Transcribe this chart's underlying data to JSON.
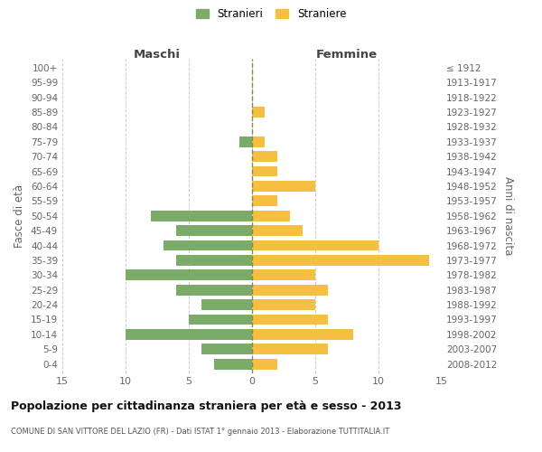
{
  "age_groups": [
    "0-4",
    "5-9",
    "10-14",
    "15-19",
    "20-24",
    "25-29",
    "30-34",
    "35-39",
    "40-44",
    "45-49",
    "50-54",
    "55-59",
    "60-64",
    "65-69",
    "70-74",
    "75-79",
    "80-84",
    "85-89",
    "90-94",
    "95-99",
    "100+"
  ],
  "birth_years": [
    "2008-2012",
    "2003-2007",
    "1998-2002",
    "1993-1997",
    "1988-1992",
    "1983-1987",
    "1978-1982",
    "1973-1977",
    "1968-1972",
    "1963-1967",
    "1958-1962",
    "1953-1957",
    "1948-1952",
    "1943-1947",
    "1938-1942",
    "1933-1937",
    "1928-1932",
    "1923-1927",
    "1918-1922",
    "1913-1917",
    "≤ 1912"
  ],
  "males": [
    3,
    4,
    10,
    5,
    4,
    6,
    10,
    6,
    7,
    6,
    8,
    0,
    0,
    0,
    0,
    1,
    0,
    0,
    0,
    0,
    0
  ],
  "females": [
    2,
    6,
    8,
    6,
    5,
    6,
    5,
    14,
    10,
    4,
    3,
    2,
    5,
    2,
    2,
    1,
    0,
    1,
    0,
    0,
    0
  ],
  "male_color": "#7aab68",
  "female_color": "#f5bf42",
  "background_color": "#ffffff",
  "grid_color": "#cccccc",
  "title": "Popolazione per cittadinanza straniera per età e sesso - 2013",
  "subtitle": "COMUNE DI SAN VITTORE DEL LAZIO (FR) - Dati ISTAT 1° gennaio 2013 - Elaborazione TUTTITALIA.IT",
  "xlabel_left": "Maschi",
  "xlabel_right": "Femmine",
  "ylabel_left": "Fasce di età",
  "ylabel_right": "Anni di nascita",
  "legend_male": "Stranieri",
  "legend_female": "Straniere",
  "xlim": 15
}
